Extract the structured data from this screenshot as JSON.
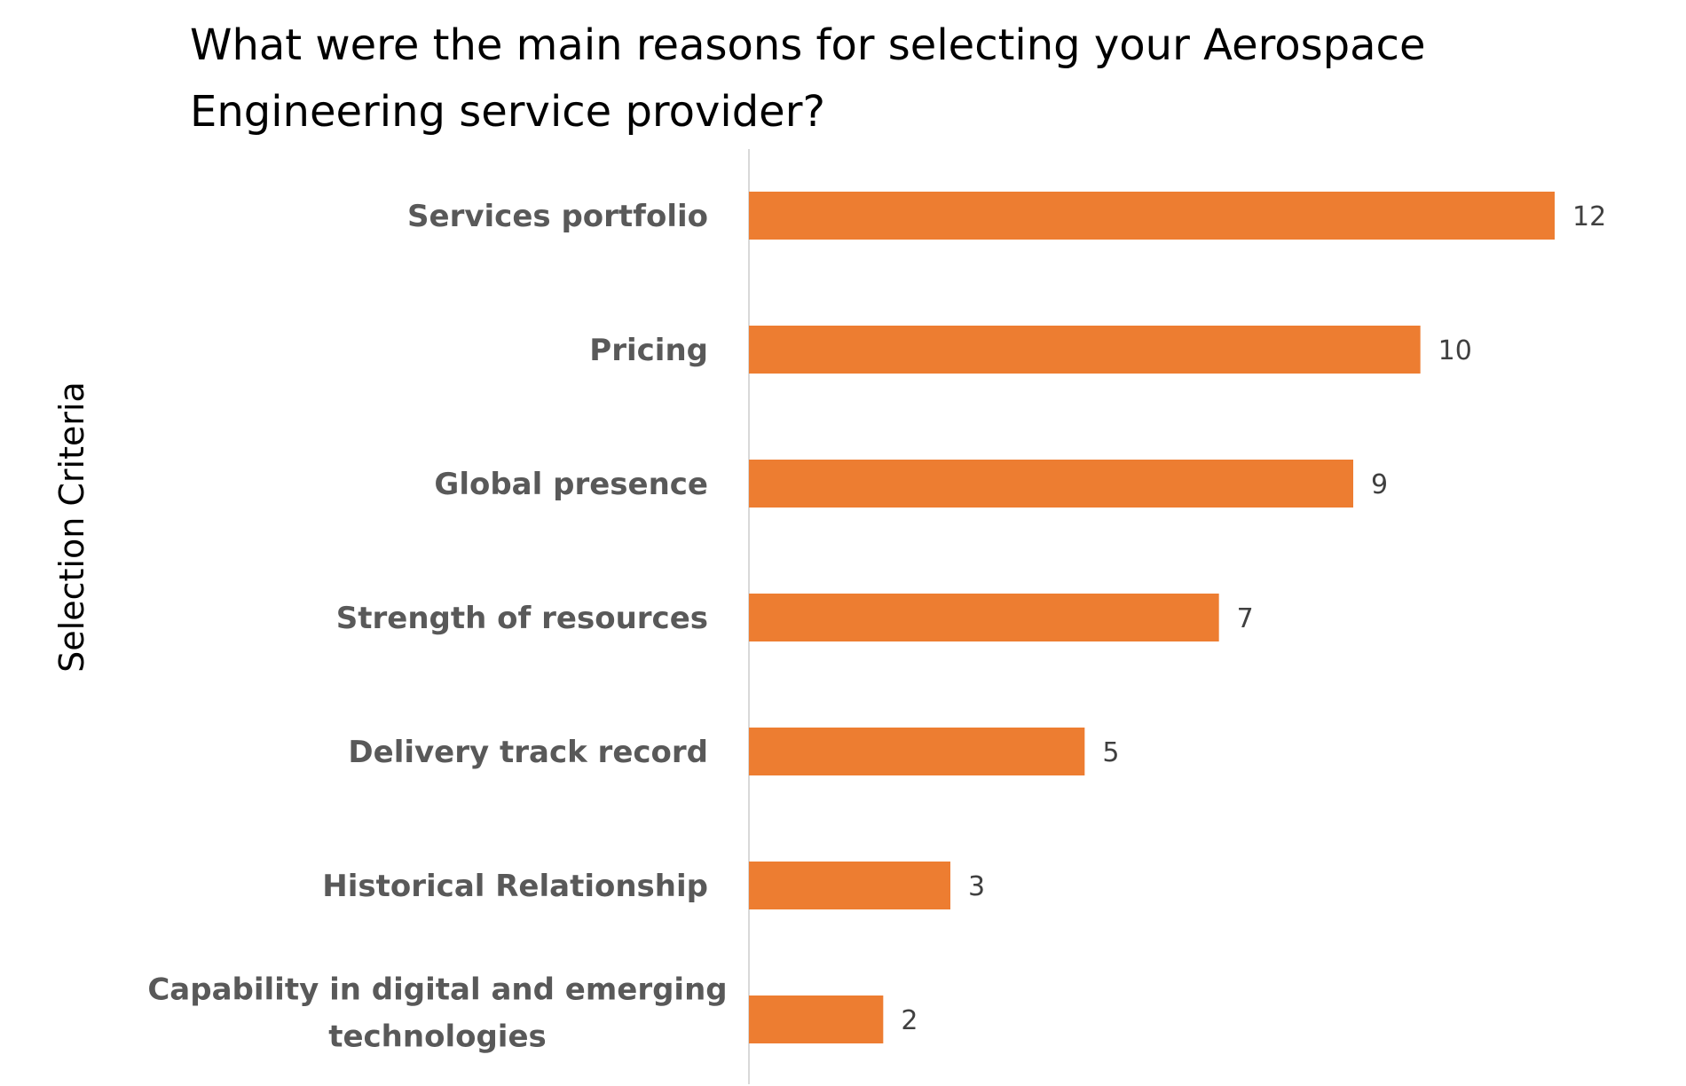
{
  "chart_data": {
    "type": "bar",
    "orientation": "horizontal",
    "title": "What were the main reasons for selecting your Aerospace Engineering service provider?",
    "xlabel": "",
    "ylabel": "Selection Criteria",
    "categories": [
      "Services portfolio",
      "Pricing",
      "Global presence",
      "Strength of resources",
      "Delivery track record",
      "Historical Relationship",
      "Capability in digital and emerging technologies"
    ],
    "category_label_lines": [
      [
        "Services portfolio"
      ],
      [
        "Pricing"
      ],
      [
        "Global presence"
      ],
      [
        "Strength of resources"
      ],
      [
        "Delivery track record"
      ],
      [
        "Historical Relationship"
      ],
      [
        "Capability in digital and emerging",
        "technologies"
      ]
    ],
    "values": [
      12,
      10,
      9,
      7,
      5,
      3,
      2
    ],
    "xlim": [
      0,
      12
    ],
    "grid": false,
    "data_labels": true,
    "bar_color": "#ED7D31",
    "axis_color": "#D9D9D9"
  }
}
